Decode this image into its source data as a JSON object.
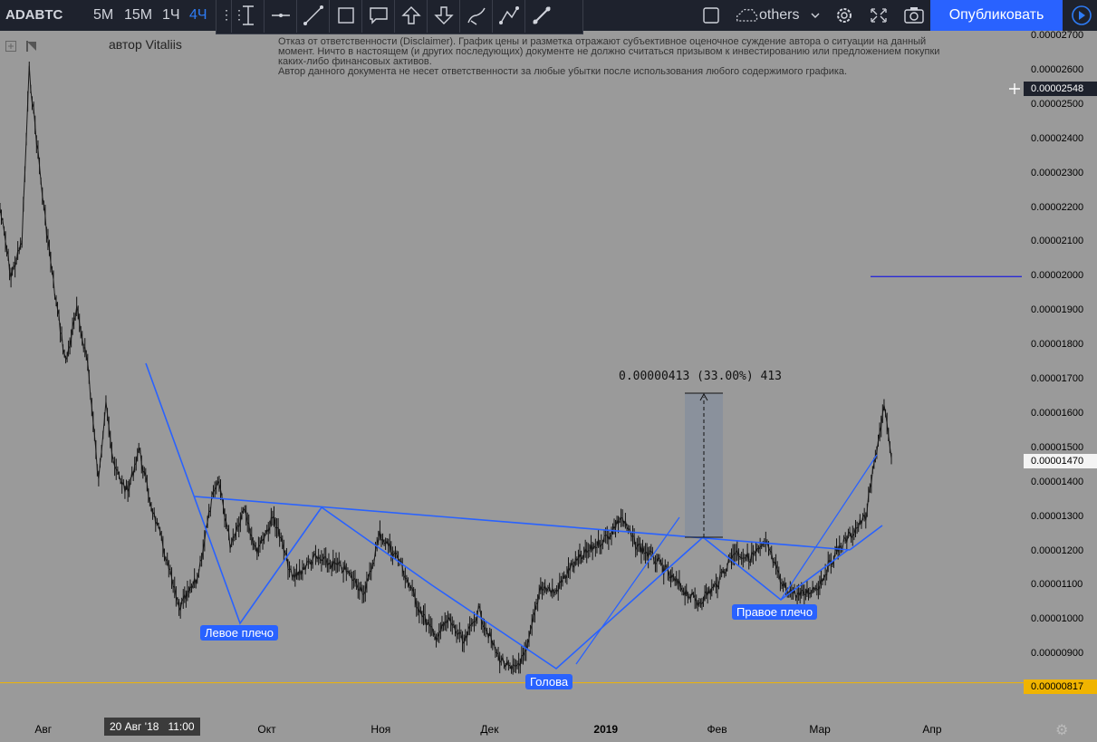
{
  "toolbar": {
    "symbol": "ADABTC",
    "intervals": [
      "5М",
      "15М",
      "1Ч",
      "4Ч"
    ],
    "active_interval": "4Ч",
    "compare_label": "others",
    "publish_label": "Опубликовать",
    "drawing_tools": [
      "vertical-line-icon",
      "horizontal-line-icon",
      "trend-line-icon",
      "rectangle-icon",
      "callout-icon",
      "arrow-up-icon",
      "arrow-down-icon",
      "brush-icon",
      "path-icon",
      "ray-icon"
    ]
  },
  "header": {
    "author": "автор Vitaliis",
    "disclaimer": [
      "Отказ от ответственности (Disclaimer). График цены и разметка отражают субъективное оценочное суждение автора о ситуации на данный",
      "момент. Ничто в настоящем (и других последующих) документе не должно считаться призывом к инвестированию или предложением покупки",
      "каких-либо финансовых активов.",
      "Автор данного документа не несет ответственности за любые убытки после использования любого содержимого графика."
    ]
  },
  "crosshair": {
    "date_label": "20 Авг '18",
    "time_label": "11:00",
    "price_label": "0.00002548"
  },
  "price_badges": [
    {
      "label": "0.00001470",
      "value": 1.47e-05,
      "style": "current"
    },
    {
      "label": "0.00000817",
      "value": 8.17e-06,
      "style": "low"
    }
  ],
  "annotations": {
    "left_shoulder": "Левое плечо",
    "head": "Голова",
    "right_shoulder": "Правое плечо",
    "measure": "0.00000413 (33.00%) 413"
  },
  "colors": {
    "background": "#9a9a9a",
    "candles": "#111111",
    "pattern_lines": "#2962ff",
    "low_line": "#f0b400",
    "toolbar": "#1e222d",
    "publish": "#2962ff"
  },
  "chart_data": {
    "type": "line",
    "title": "ADABTC",
    "xlabel": "",
    "ylabel": "",
    "x_ticks": [
      "Авг",
      "Окт",
      "Ноя",
      "Дек",
      "2019",
      "Фев",
      "Мар",
      "Апр"
    ],
    "y_ticks": [
      "0.00002700",
      "0.00002600",
      "0.00002500",
      "0.00002400",
      "0.00002300",
      "0.00002200",
      "0.00002100",
      "0.00002000",
      "0.00001900",
      "0.00001800",
      "0.00001700",
      "0.00001600",
      "0.00001500",
      "0.00001400",
      "0.00001300",
      "0.00001200",
      "0.00001100",
      "0.00001000",
      "0.00000900"
    ],
    "ylim": [
      7.7e-06,
      2.72e-05
    ],
    "grid": false,
    "series": [
      {
        "values": [
          [
            "2018-07-20",
            2.2e-05
          ],
          [
            "2018-07-23",
            2e-05
          ],
          [
            "2018-07-26",
            2.1e-05
          ],
          [
            "2018-07-28",
            2.6e-05
          ],
          [
            "2018-07-30",
            2.4e-05
          ],
          [
            "2018-08-01",
            2.2e-05
          ],
          [
            "2018-08-04",
            1.95e-05
          ],
          [
            "2018-08-07",
            1.75e-05
          ],
          [
            "2018-08-10",
            1.9e-05
          ],
          [
            "2018-08-13",
            1.75e-05
          ],
          [
            "2018-08-16",
            1.4e-05
          ],
          [
            "2018-08-18",
            1.65e-05
          ],
          [
            "2018-08-20",
            1.45e-05
          ],
          [
            "2018-08-24",
            1.37e-05
          ],
          [
            "2018-08-27",
            1.5e-05
          ],
          [
            "2018-08-30",
            1.35e-05
          ],
          [
            "2018-09-03",
            1.2e-05
          ],
          [
            "2018-09-07",
            1.03e-05
          ],
          [
            "2018-09-12",
            1.12e-05
          ],
          [
            "2018-09-16",
            1.35e-05
          ],
          [
            "2018-09-18",
            1.4e-05
          ],
          [
            "2018-09-21",
            1.22e-05
          ],
          [
            "2018-09-25",
            1.33e-05
          ],
          [
            "2018-09-28",
            1.2e-05
          ],
          [
            "2018-10-03",
            1.3e-05
          ],
          [
            "2018-10-08",
            1.12e-05
          ],
          [
            "2018-10-14",
            1.18e-05
          ],
          [
            "2018-10-22",
            1.15e-05
          ],
          [
            "2018-10-28",
            1.08e-05
          ],
          [
            "2018-11-01",
            1.25e-05
          ],
          [
            "2018-11-06",
            1.18e-05
          ],
          [
            "2018-11-11",
            1.05e-05
          ],
          [
            "2018-11-16",
            9.5e-06
          ],
          [
            "2018-11-20",
            1e-05
          ],
          [
            "2018-11-24",
            9.3e-06
          ],
          [
            "2018-11-28",
            1.03e-05
          ],
          [
            "2018-12-03",
            9e-06
          ],
          [
            "2018-12-07",
            8.5e-06
          ],
          [
            "2018-12-11",
            9e-06
          ],
          [
            "2018-12-15",
            1.1e-05
          ],
          [
            "2018-12-19",
            1.08e-05
          ],
          [
            "2018-12-23",
            1.15e-05
          ],
          [
            "2018-12-28",
            1.2e-05
          ],
          [
            "2019-01-03",
            1.25e-05
          ],
          [
            "2019-01-06",
            1.3e-05
          ],
          [
            "2019-01-10",
            1.22e-05
          ],
          [
            "2019-01-15",
            1.18e-05
          ],
          [
            "2019-01-20",
            1.12e-05
          ],
          [
            "2019-01-27",
            1.05e-05
          ],
          [
            "2019-02-01",
            1.1e-05
          ],
          [
            "2019-02-06",
            1.2e-05
          ],
          [
            "2019-02-10",
            1.18e-05
          ],
          [
            "2019-02-15",
            1.22e-05
          ],
          [
            "2019-02-19",
            1.1e-05
          ],
          [
            "2019-02-24",
            1.07e-05
          ],
          [
            "2019-03-01",
            1.1e-05
          ],
          [
            "2019-03-06",
            1.2e-05
          ],
          [
            "2019-03-10",
            1.25e-05
          ],
          [
            "2019-03-14",
            1.3e-05
          ],
          [
            "2019-03-17",
            1.5e-05
          ],
          [
            "2019-03-19",
            1.62e-05
          ],
          [
            "2019-03-21",
            1.47e-05
          ]
        ]
      }
    ]
  }
}
